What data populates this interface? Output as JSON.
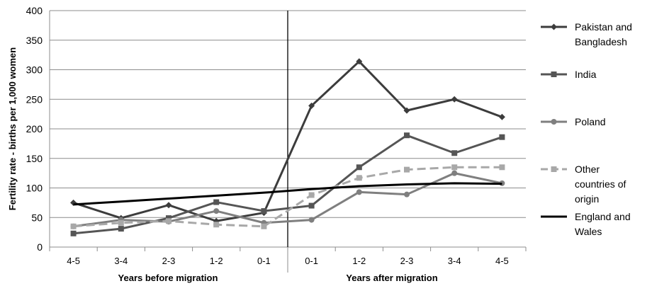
{
  "chart_data": {
    "type": "line",
    "title": "",
    "ylabel": "Fertility rate - births per 1,000 women",
    "ylim": [
      0,
      400
    ],
    "yticks": [
      0,
      50,
      100,
      150,
      200,
      250,
      300,
      350,
      400
    ],
    "categories": [
      "4-5",
      "3-4",
      "2-3",
      "1-2",
      "0-1",
      "0-1",
      "1-2",
      "2-3",
      "3-4",
      "4-5"
    ],
    "groups": [
      "Years before migration",
      "Years after migration"
    ],
    "grid": true,
    "legend": "right",
    "series": [
      {
        "name": "Pakistan and Bangladesh",
        "color": "#3c3c3c",
        "dash": "solid",
        "marker": "diamond",
        "values": [
          75,
          49,
          71,
          44,
          58,
          239,
          314,
          231,
          250,
          220
        ]
      },
      {
        "name": "India",
        "color": "#555555",
        "dash": "solid",
        "marker": "square",
        "values": [
          23,
          31,
          49,
          76,
          61,
          70,
          135,
          189,
          159,
          186
        ]
      },
      {
        "name": "Poland",
        "color": "#7f7f7f",
        "dash": "solid",
        "marker": "circle",
        "values": [
          35,
          46,
          43,
          61,
          41,
          46,
          93,
          89,
          125,
          108
        ]
      },
      {
        "name": "Other countries of origin",
        "color": "#a8a8a8",
        "dash": "dashed",
        "marker": "square",
        "values": [
          35,
          41,
          44,
          38,
          35,
          88,
          117,
          131,
          135,
          135
        ]
      },
      {
        "name": "England and Wales",
        "color": "#000000",
        "dash": "solid",
        "marker": "none",
        "values": [
          72,
          77,
          82,
          87,
          92,
          98,
          103,
          106,
          108,
          107
        ]
      }
    ]
  }
}
